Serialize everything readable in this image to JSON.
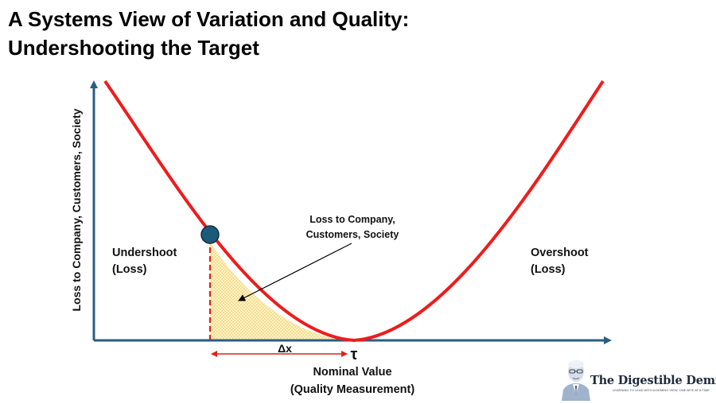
{
  "title": {
    "line1": "A Systems View of Variation and Quality:",
    "line2": "Undershooting the Target"
  },
  "axes": {
    "y_label": "Loss to Company, Customers, Society",
    "x_label_line1": "Nominal Value",
    "x_label_line2": "(Quality Measurement)",
    "target_symbol": "τ"
  },
  "labels": {
    "undershoot_line1": "Undershoot",
    "undershoot_line2": "(Loss)",
    "overshoot_line1": "Overshoot",
    "overshoot_line2": "(Loss)",
    "loss_note_line1": "Loss to Company,",
    "loss_note_line2": "Customers, Society",
    "delta": "Δx"
  },
  "brand": {
    "name": "The Digestible Deming",
    "tagline": "LEARNING TO LEAD WITH A DEMING VIEW, ONE BITE AT A TIME"
  },
  "colors": {
    "curve": "#ee1c1c",
    "axis": "#2a5d80",
    "point": "#1c5a7a",
    "shade": "#f2c24a",
    "arrow": "#e0201c"
  }
}
